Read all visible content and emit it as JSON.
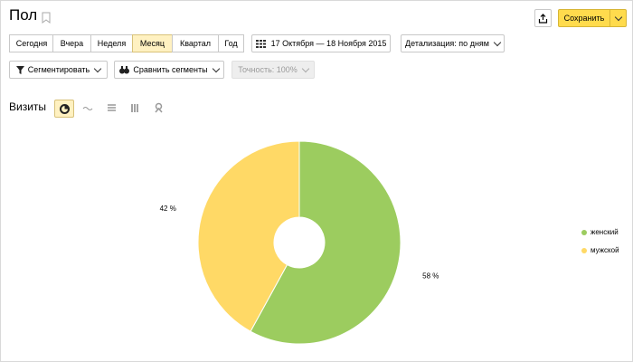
{
  "header": {
    "title": "Пол",
    "save": "Сохранить"
  },
  "periods": [
    {
      "label": "Сегодня",
      "active": false
    },
    {
      "label": "Вчера",
      "active": false
    },
    {
      "label": "Неделя",
      "active": false
    },
    {
      "label": "Месяц",
      "active": true
    },
    {
      "label": "Квартал",
      "active": false
    },
    {
      "label": "Год",
      "active": false
    }
  ],
  "date_range": "17 Октября — 18 Ноября 2015",
  "detail": "Детализация: по дням",
  "segment": "Сегментировать",
  "compare": "Сравнить сегменты",
  "accuracy": "Точность: 100%",
  "metric": "Визиты",
  "chart_data": {
    "type": "pie",
    "categories": [
      "женский",
      "мужской"
    ],
    "values": [
      58,
      42
    ],
    "value_labels": [
      "58 %",
      "42 %"
    ],
    "colors": [
      "#9ccc5f",
      "#ffd966"
    ],
    "legend": "right"
  }
}
